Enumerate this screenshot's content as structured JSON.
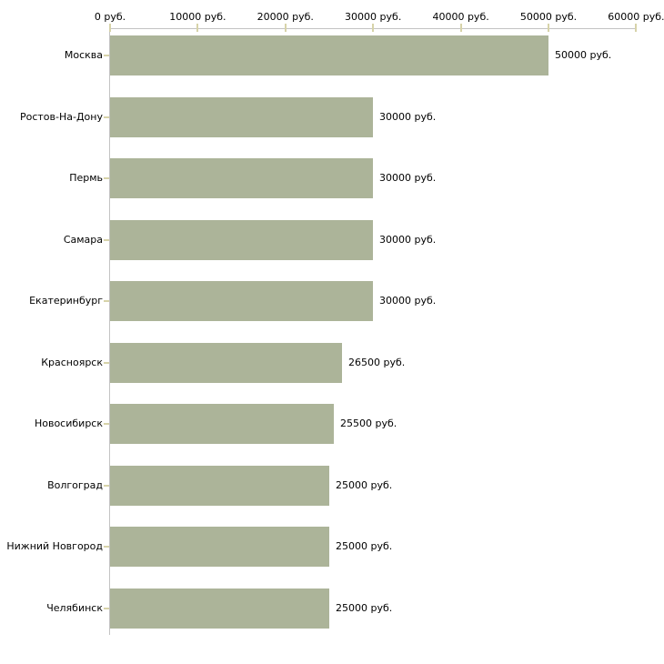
{
  "chart_data": {
    "type": "bar",
    "orientation": "horizontal",
    "title": "",
    "categories": [
      "Москва",
      "Ростов-На-Дону",
      "Пермь",
      "Самара",
      "Екатеринбург",
      "Красноярск",
      "Новосибирск",
      "Волгоград",
      "Нижний Новгород",
      "Челябинск"
    ],
    "values": [
      50000,
      30000,
      30000,
      30000,
      30000,
      26500,
      25500,
      25000,
      25000,
      25000
    ],
    "value_labels": [
      "50000 руб.",
      "30000 руб.",
      "30000 руб.",
      "30000 руб.",
      "30000 руб.",
      "26500 руб.",
      "25500 руб.",
      "25000 руб.",
      "25000 руб.",
      "25000 руб."
    ],
    "x_axis": {
      "tick_labels": [
        "0 руб.",
        "10000 руб.",
        "20000 руб.",
        "30000 руб.",
        "40000 руб.",
        "50000 руб.",
        "60000 руб."
      ],
      "tick_values": [
        0,
        10000,
        20000,
        30000,
        40000,
        50000,
        60000
      ],
      "min": 0,
      "max": 60000,
      "unit": "руб."
    },
    "grid": false,
    "legend": false,
    "colors": {
      "bar": "#acb499",
      "axis_line": "#c3c3c3",
      "tick_mark": "#d7d3a9",
      "text": "#000000",
      "background": "#ffffff"
    }
  }
}
